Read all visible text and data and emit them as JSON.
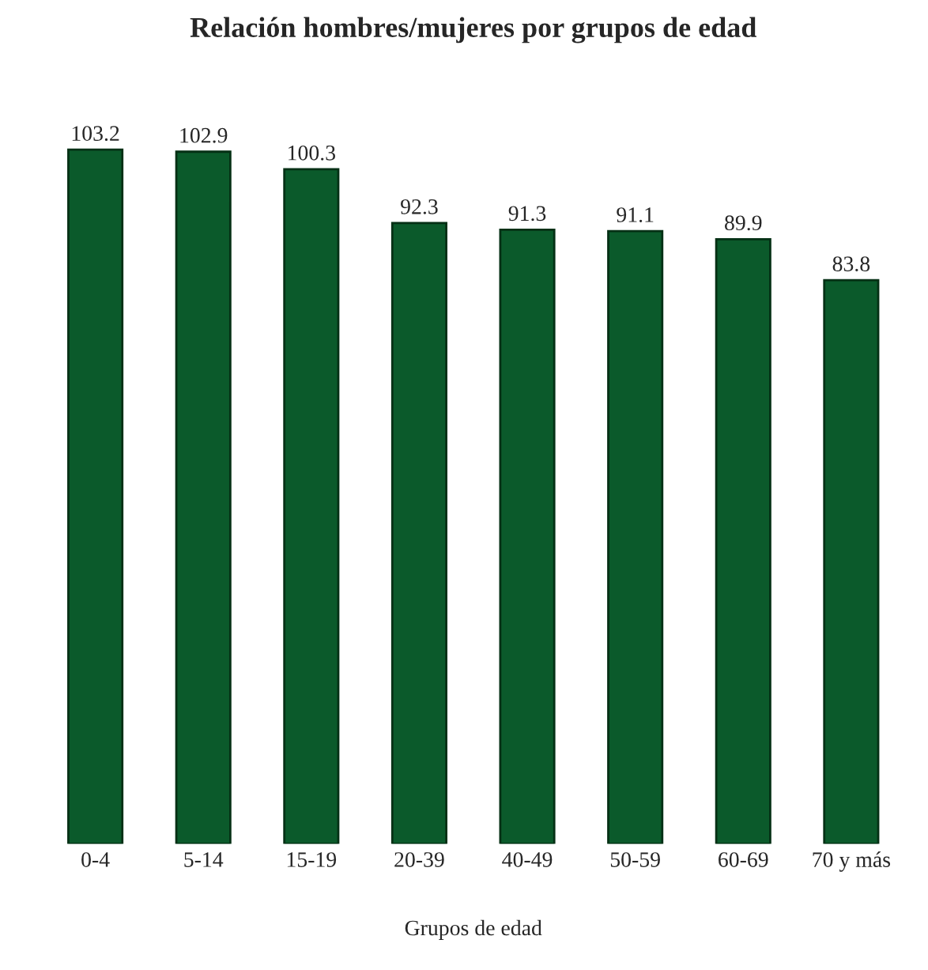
{
  "chart_data": {
    "type": "bar",
    "title": "Relación hombres/mujeres por grupos de edad",
    "xlabel": "Grupos de edad",
    "categories": [
      "0-4",
      "5-14",
      "15-19",
      "20-39",
      "40-49",
      "50-59",
      "60-69",
      "70 y más"
    ],
    "values": [
      103.2,
      102.9,
      100.3,
      92.3,
      91.3,
      91.1,
      89.9,
      83.8
    ],
    "color": "#0b5a2b",
    "data_labels": true,
    "grid": false,
    "legend": false,
    "tick_labels": "x"
  }
}
